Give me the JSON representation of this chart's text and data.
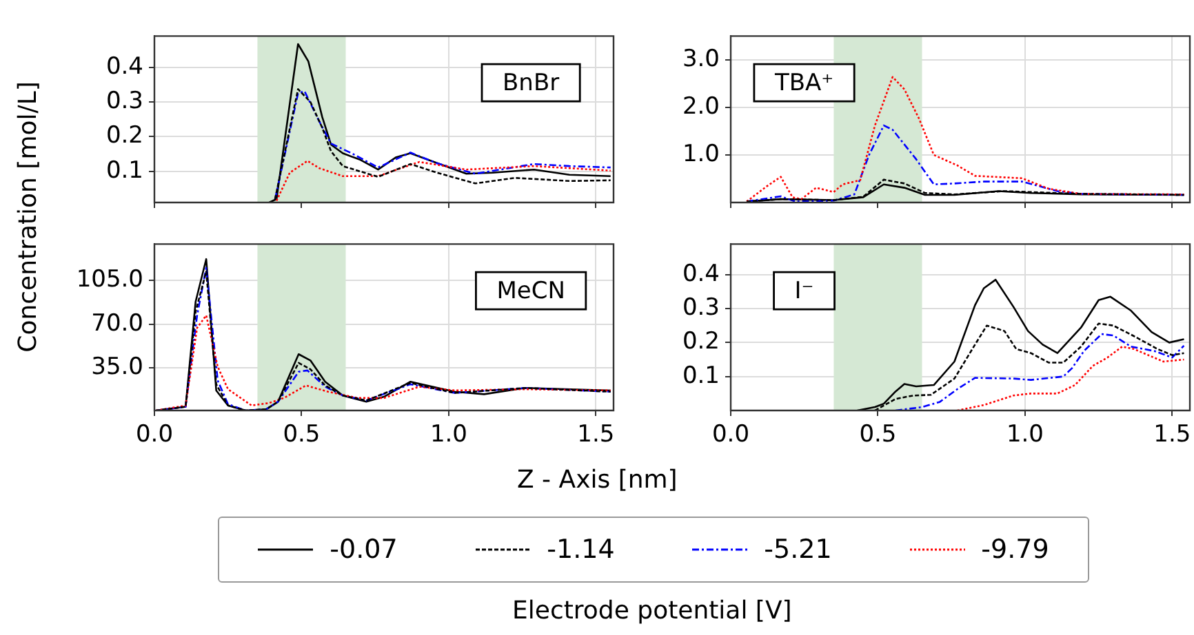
{
  "chart_data": [
    {
      "type": "line",
      "title": "BnBr",
      "xlabel": "Z - Axis [nm]",
      "ylabel": "Concentration [mol/L]",
      "legend": "bottom",
      "legend_title": "Electrode potential [V]",
      "tick_labels": "y",
      "grid": true,
      "marker": "none",
      "xlim": [
        0,
        1.56
      ],
      "xticks": [
        {
          "value": 0,
          "label": null
        },
        {
          "value": 0.5,
          "label": null
        },
        {
          "value": 1,
          "label": null
        },
        {
          "value": 1.5,
          "label": null
        }
      ],
      "ylim": [
        0.01,
        0.49
      ],
      "yticks": [
        0.1,
        0.2,
        0.3,
        0.4
      ],
      "bands": [
        {
          "axis": "x",
          "from": 0.35,
          "to": 0.65,
          "color": "#d5e8d4"
        }
      ],
      "series": [
        {
          "name": "-0.07",
          "color": "#000000",
          "line_style": "solid",
          "x": [
            0.39,
            0.415,
            0.488,
            0.523,
            0.57,
            0.6,
            0.64,
            0.7,
            0.76,
            0.82,
            0.87,
            0.93,
            1.06,
            1.15,
            1.29,
            1.41,
            1.55
          ],
          "values": [
            0.01,
            0.02,
            0.467,
            0.417,
            0.257,
            0.177,
            0.152,
            0.133,
            0.105,
            0.14,
            0.152,
            0.133,
            0.093,
            0.096,
            0.105,
            0.09,
            0.086
          ]
        },
        {
          "name": "-1.14",
          "color": "#000000",
          "line_style": "dashed",
          "x": [
            0.41,
            0.488,
            0.53,
            0.57,
            0.6,
            0.64,
            0.76,
            0.87,
            0.96,
            1.09,
            1.225,
            1.41,
            1.55
          ],
          "values": [
            0.02,
            0.337,
            0.3,
            0.226,
            0.158,
            0.115,
            0.084,
            0.121,
            0.096,
            0.065,
            0.081,
            0.072,
            0.074
          ]
        },
        {
          "name": "-5.21",
          "color": "#0000ff",
          "line_style": "dashdot",
          "x": [
            0.41,
            0.488,
            0.51,
            0.56,
            0.6,
            0.67,
            0.76,
            0.87,
            0.96,
            1.09,
            1.29,
            1.41,
            1.55
          ],
          "values": [
            0.02,
            0.325,
            0.331,
            0.244,
            0.18,
            0.152,
            0.111,
            0.154,
            0.123,
            0.093,
            0.121,
            0.115,
            0.111
          ]
        },
        {
          "name": "-9.79",
          "color": "#ff0000",
          "line_style": "dotted",
          "x": [
            0.415,
            0.46,
            0.52,
            0.56,
            0.64,
            0.76,
            0.9,
            1.06,
            1.29,
            1.55
          ],
          "values": [
            0.015,
            0.096,
            0.13,
            0.109,
            0.086,
            0.086,
            0.127,
            0.105,
            0.115,
            0.102
          ]
        }
      ]
    },
    {
      "type": "line",
      "title": "TBA⁺",
      "tick_labels": "y",
      "grid": true,
      "marker": "none",
      "xlim": [
        0,
        1.56
      ],
      "xticks": [
        {
          "value": 0,
          "label": null
        },
        {
          "value": 0.5,
          "label": null
        },
        {
          "value": 1,
          "label": null
        },
        {
          "value": 1.5,
          "label": null
        }
      ],
      "ylim": [
        0,
        3.5
      ],
      "yticks": [
        {
          "value": 1,
          "label": "1.0"
        },
        {
          "value": 2,
          "label": "2.0"
        },
        {
          "value": 3,
          "label": "3.0"
        }
      ],
      "bands": [
        {
          "axis": "x",
          "from": 0.35,
          "to": 0.65,
          "color": "#d5e8d4"
        }
      ],
      "series": [
        {
          "color": "#000000",
          "line_style": "solid",
          "x": [
            0.054,
            0.17,
            0.35,
            0.45,
            0.52,
            0.59,
            0.66,
            0.76,
            0.91,
            1.02,
            1.19,
            1.54
          ],
          "values": [
            0.02,
            0.07,
            0.05,
            0.11,
            0.38,
            0.31,
            0.16,
            0.16,
            0.24,
            0.2,
            0.17,
            0.16
          ]
        },
        {
          "color": "#000000",
          "line_style": "dashed",
          "x": [
            0.054,
            0.17,
            0.35,
            0.45,
            0.52,
            0.59,
            0.66,
            0.76,
            0.93,
            1.19,
            1.54
          ],
          "values": [
            0.02,
            0.07,
            0.05,
            0.12,
            0.48,
            0.4,
            0.2,
            0.17,
            0.24,
            0.18,
            0.16
          ]
        },
        {
          "color": "#0000ff",
          "line_style": "dashdot",
          "x": [
            0.054,
            0.17,
            0.22,
            0.35,
            0.42,
            0.47,
            0.52,
            0.55,
            0.63,
            0.69,
            0.76,
            0.86,
            0.99,
            1.11,
            1.19,
            1.54
          ],
          "values": [
            0.02,
            0.13,
            0.02,
            0.04,
            0.17,
            1.0,
            1.62,
            1.53,
            0.91,
            0.38,
            0.4,
            0.44,
            0.44,
            0.24,
            0.18,
            0.16
          ]
        },
        {
          "color": "#ff0000",
          "line_style": "dotted",
          "x": [
            0.054,
            0.12,
            0.17,
            0.21,
            0.24,
            0.29,
            0.35,
            0.38,
            0.44,
            0.49,
            0.55,
            0.59,
            0.64,
            0.69,
            0.77,
            0.83,
            0.99,
            1.08,
            1.19,
            1.54
          ],
          "values": [
            0.02,
            0.33,
            0.54,
            0.11,
            0.07,
            0.31,
            0.22,
            0.38,
            0.47,
            1.62,
            2.64,
            2.38,
            1.76,
            1.0,
            0.78,
            0.56,
            0.51,
            0.29,
            0.18,
            0.17
          ]
        }
      ]
    },
    {
      "type": "line",
      "title": "MeCN",
      "grid": true,
      "marker": "none",
      "xlim": [
        0,
        1.56
      ],
      "xticks": [
        {
          "value": 0,
          "label": "0.0"
        },
        {
          "value": 0.5,
          "label": "0.5"
        },
        {
          "value": 1,
          "label": "1.0"
        },
        {
          "value": 1.5,
          "label": "1.5"
        }
      ],
      "ylim": [
        1,
        134
      ],
      "yticks": [
        {
          "value": 35,
          "label": "35.0"
        },
        {
          "value": 70,
          "label": "70.0"
        },
        {
          "value": 105,
          "label": "105.0"
        }
      ],
      "bands": [
        {
          "axis": "x",
          "from": 0.35,
          "to": 0.65,
          "color": "#d5e8d4"
        }
      ],
      "series": [
        {
          "color": "#000000",
          "line_style": "solid",
          "x": [
            0.006,
            0.106,
            0.14,
            0.176,
            0.21,
            0.25,
            0.31,
            0.38,
            0.42,
            0.49,
            0.53,
            0.58,
            0.64,
            0.72,
            0.78,
            0.87,
            1.02,
            1.12,
            1.26,
            1.55
          ],
          "values": [
            1,
            4,
            88,
            122,
            17,
            5,
            1,
            2,
            8,
            46,
            41,
            24,
            13,
            8,
            12,
            24,
            16,
            14,
            19,
            17
          ]
        },
        {
          "color": "#000000",
          "line_style": "dashed",
          "x": [
            0.006,
            0.106,
            0.14,
            0.176,
            0.21,
            0.25,
            0.31,
            0.38,
            0.42,
            0.49,
            0.53,
            0.58,
            0.64,
            0.72,
            0.87,
            1.02,
            1.26,
            1.55
          ],
          "values": [
            1,
            4,
            80,
            112,
            22,
            5,
            1,
            2,
            8,
            39,
            34,
            21,
            13,
            9,
            23,
            15,
            19,
            16
          ]
        },
        {
          "color": "#0000ff",
          "line_style": "dashdot",
          "x": [
            0.006,
            0.106,
            0.145,
            0.176,
            0.215,
            0.25,
            0.31,
            0.38,
            0.42,
            0.49,
            0.52,
            0.58,
            0.64,
            0.72,
            0.87,
            1.02,
            1.26,
            1.55
          ],
          "values": [
            1,
            4,
            77,
            115,
            25,
            6,
            1,
            2,
            8,
            32,
            33,
            20,
            13,
            9,
            22,
            15,
            19,
            16
          ]
        },
        {
          "color": "#ff0000",
          "line_style": "dotted",
          "x": [
            0.006,
            0.106,
            0.145,
            0.176,
            0.215,
            0.25,
            0.33,
            0.39,
            0.44,
            0.515,
            0.59,
            0.69,
            0.78,
            0.9,
            1.02,
            1.26,
            1.55
          ],
          "values": [
            1,
            5,
            67,
            77,
            36,
            18,
            5,
            7,
            11,
            21,
            16,
            11,
            11,
            20,
            17,
            18,
            17
          ]
        }
      ]
    },
    {
      "type": "line",
      "title": "I⁻",
      "grid": true,
      "marker": "none",
      "xlim": [
        0,
        1.56
      ],
      "xticks": [
        {
          "value": 0,
          "label": "0.0"
        },
        {
          "value": 0.5,
          "label": "0.5"
        },
        {
          "value": 1,
          "label": "1.0"
        },
        {
          "value": 1.5,
          "label": "1.5"
        }
      ],
      "ylim": [
        0,
        0.49
      ],
      "yticks": [
        0.1,
        0.2,
        0.3,
        0.4
      ],
      "bands": [
        {
          "axis": "x",
          "from": 0.35,
          "to": 0.65,
          "color": "#d5e8d4"
        }
      ],
      "series": [
        {
          "color": "#000000",
          "line_style": "solid",
          "x": [
            0.43,
            0.49,
            0.52,
            0.56,
            0.59,
            0.63,
            0.69,
            0.76,
            0.83,
            0.86,
            0.9,
            0.96,
            1.01,
            1.06,
            1.11,
            1.19,
            1.25,
            1.29,
            1.36,
            1.43,
            1.49,
            1.54
          ],
          "values": [
            0,
            0.01,
            0.02,
            0.056,
            0.078,
            0.071,
            0.075,
            0.144,
            0.31,
            0.36,
            0.385,
            0.306,
            0.234,
            0.194,
            0.169,
            0.244,
            0.325,
            0.335,
            0.294,
            0.231,
            0.2,
            0.21
          ]
        },
        {
          "color": "#000000",
          "line_style": "dashed",
          "x": [
            0.49,
            0.56,
            0.62,
            0.68,
            0.76,
            0.83,
            0.87,
            0.93,
            0.97,
            1.02,
            1.08,
            1.13,
            1.19,
            1.25,
            1.3,
            1.37,
            1.45,
            1.5,
            1.54
          ],
          "values": [
            0,
            0.034,
            0.044,
            0.046,
            0.094,
            0.194,
            0.25,
            0.234,
            0.181,
            0.169,
            0.141,
            0.141,
            0.188,
            0.256,
            0.25,
            0.219,
            0.181,
            0.163,
            0.169
          ]
        },
        {
          "color": "#0000ff",
          "line_style": "dashdot",
          "x": [
            0.56,
            0.65,
            0.71,
            0.77,
            0.83,
            0.96,
            1.02,
            1.13,
            1.16,
            1.2,
            1.26,
            1.3,
            1.36,
            1.44,
            1.5,
            1.54
          ],
          "values": [
            0,
            0.01,
            0.025,
            0.063,
            0.096,
            0.094,
            0.09,
            0.1,
            0.125,
            0.175,
            0.225,
            0.221,
            0.188,
            0.175,
            0.156,
            0.191
          ]
        },
        {
          "color": "#ff0000",
          "line_style": "dotted",
          "x": [
            0.77,
            0.86,
            0.96,
            1.02,
            1.11,
            1.17,
            1.23,
            1.28,
            1.33,
            1.37,
            1.47,
            1.54
          ],
          "values": [
            0,
            0.016,
            0.044,
            0.05,
            0.05,
            0.075,
            0.131,
            0.156,
            0.188,
            0.181,
            0.144,
            0.15
          ]
        }
      ]
    }
  ]
}
